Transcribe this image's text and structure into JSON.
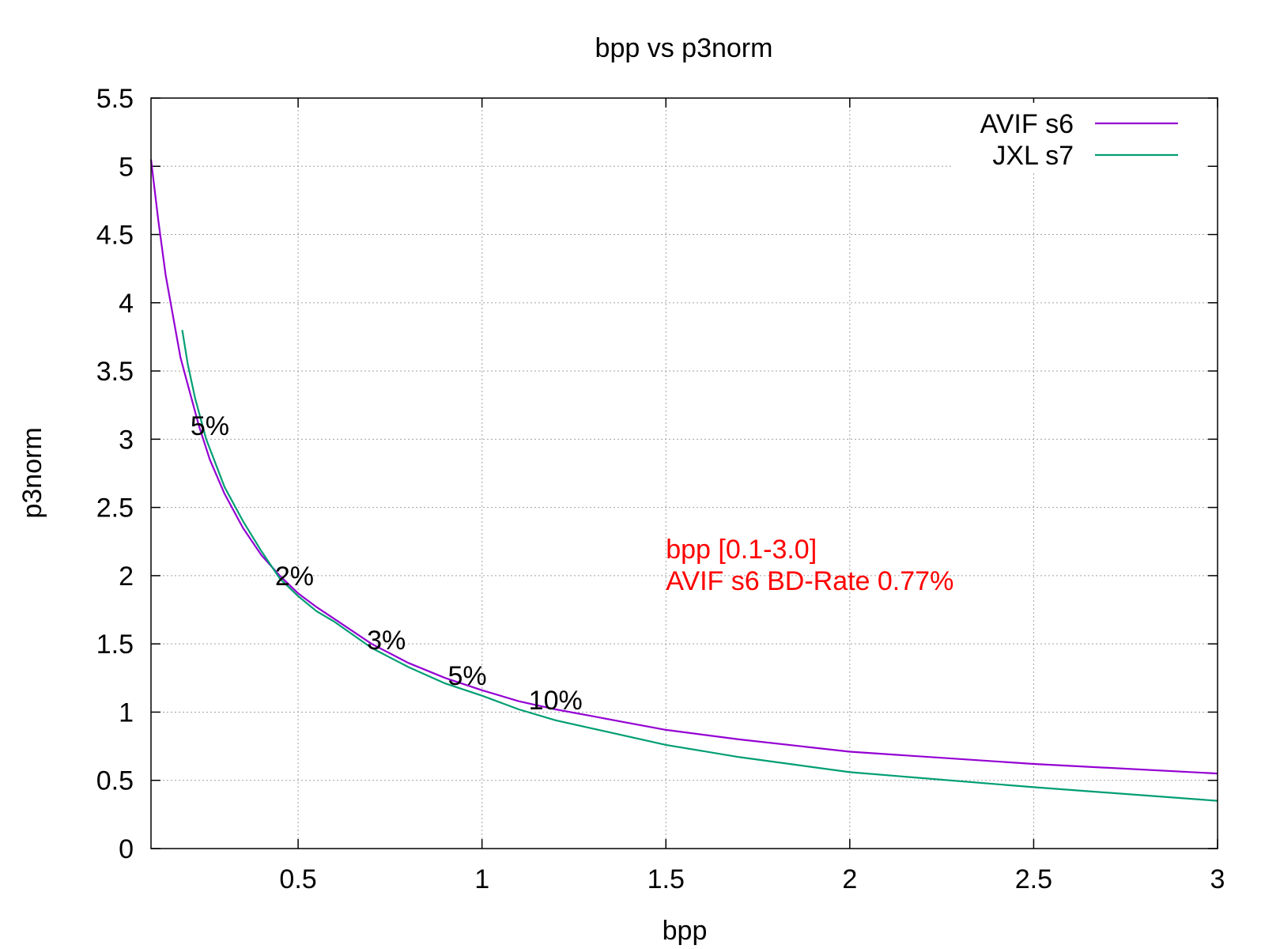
{
  "chart_data": {
    "type": "line",
    "title": "bpp vs p3norm",
    "xlabel": "bpp",
    "ylabel": "p3norm",
    "xlim": [
      0.1,
      3.0
    ],
    "ylim": [
      0,
      5.5
    ],
    "xticks": [
      0.5,
      1,
      1.5,
      2,
      2.5,
      3
    ],
    "xtick_labels": [
      "0.5",
      "1",
      "1.5",
      "2",
      "2.5",
      "3"
    ],
    "yticks": [
      0,
      0.5,
      1,
      1.5,
      2,
      2.5,
      3,
      3.5,
      4,
      4.5,
      5,
      5.5
    ],
    "ytick_labels": [
      "0",
      "0.5",
      "1",
      "1.5",
      "2",
      "2.5",
      "3",
      "3.5",
      "4",
      "4.5",
      "5",
      "5.5"
    ],
    "grid": true,
    "legend_position": "top-right",
    "series": [
      {
        "name": "AVIF s6",
        "color": "#9400d3",
        "x": [
          0.1,
          0.12,
          0.14,
          0.16,
          0.18,
          0.2,
          0.23,
          0.26,
          0.3,
          0.35,
          0.4,
          0.45,
          0.5,
          0.55,
          0.6,
          0.7,
          0.8,
          0.9,
          1.0,
          1.1,
          1.2,
          1.3,
          1.4,
          1.5,
          1.7,
          2.0,
          2.5,
          3.0
        ],
        "y": [
          5.05,
          4.6,
          4.2,
          3.9,
          3.6,
          3.4,
          3.1,
          2.85,
          2.6,
          2.35,
          2.15,
          2.0,
          1.87,
          1.77,
          1.68,
          1.5,
          1.36,
          1.25,
          1.16,
          1.08,
          1.02,
          0.97,
          0.92,
          0.87,
          0.8,
          0.71,
          0.62,
          0.55
        ]
      },
      {
        "name": "JXL s7",
        "color": "#009e73",
        "x": [
          0.185,
          0.2,
          0.22,
          0.25,
          0.3,
          0.35,
          0.4,
          0.45,
          0.5,
          0.55,
          0.6,
          0.7,
          0.8,
          0.9,
          1.0,
          1.1,
          1.2,
          1.3,
          1.5,
          1.7,
          2.0,
          2.5,
          3.0
        ],
        "y": [
          3.8,
          3.55,
          3.3,
          3.0,
          2.65,
          2.4,
          2.18,
          1.98,
          1.85,
          1.74,
          1.66,
          1.47,
          1.33,
          1.21,
          1.12,
          1.02,
          0.94,
          0.88,
          0.76,
          0.67,
          0.56,
          0.45,
          0.35
        ]
      }
    ],
    "annotations": [
      {
        "text": "5%",
        "x": 0.26,
        "y": 3.1
      },
      {
        "text": "2%",
        "x": 0.49,
        "y": 2.0
      },
      {
        "text": "3%",
        "x": 0.74,
        "y": 1.53
      },
      {
        "text": "5%",
        "x": 0.96,
        "y": 1.27
      },
      {
        "text": "10%",
        "x": 1.2,
        "y": 1.09
      }
    ],
    "info_lines": [
      "bpp [0.1-3.0]",
      "AVIF s6 BD-Rate 0.77%"
    ],
    "info_position": {
      "x": 1.5,
      "y": 2.2
    }
  }
}
